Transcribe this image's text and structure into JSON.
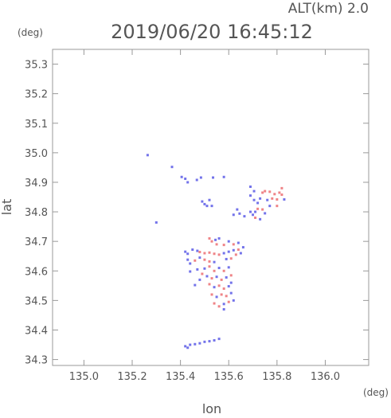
{
  "chart_data": {
    "type": "scatter",
    "title": "2019/06/20 16:45:12",
    "subtitle": "ALT(km) 2.0",
    "xlabel": "lon",
    "ylabel": "lat",
    "x_unit": "(deg)",
    "y_unit": "(deg)",
    "xlim": [
      134.87,
      136.18
    ],
    "ylim": [
      34.28,
      35.35
    ],
    "x_ticks": [
      135.0,
      135.2,
      135.4,
      135.6,
      135.8,
      136.0
    ],
    "y_ticks": [
      34.3,
      34.4,
      34.5,
      34.6,
      34.7,
      34.8,
      34.9,
      35.0,
      35.1,
      35.2,
      35.3
    ],
    "x_tick_labels": [
      "135.0",
      "135.2",
      "135.4",
      "135.6",
      "135.8",
      "136.0"
    ],
    "y_tick_labels": [
      "34.3",
      "34.4",
      "34.5",
      "34.6",
      "34.7",
      "34.8",
      "34.9",
      "35.0",
      "35.1",
      "35.2",
      "35.3"
    ],
    "grid": false,
    "colors": {
      "negative": "#5a5ae6",
      "positive": "#ec6e72",
      "neutral": "#c9c9ea",
      "axis": "#999999",
      "text": "#555555"
    },
    "series": [
      {
        "values": [
          [
            135.264,
            34.992,
            "n"
          ],
          [
            135.3,
            34.764,
            "n"
          ],
          [
            135.365,
            34.952,
            "n"
          ],
          [
            135.405,
            34.918,
            "n"
          ],
          [
            135.42,
            34.912,
            "n"
          ],
          [
            135.43,
            34.9,
            "n"
          ],
          [
            135.468,
            34.908,
            "n"
          ],
          [
            135.485,
            34.916,
            "n"
          ],
          [
            135.535,
            34.916,
            "n"
          ],
          [
            135.58,
            34.918,
            "n"
          ],
          [
            135.49,
            34.835,
            "n"
          ],
          [
            135.5,
            34.826,
            "n"
          ],
          [
            135.51,
            34.82,
            "n"
          ],
          [
            135.52,
            34.84,
            "n"
          ],
          [
            135.53,
            34.82,
            "n"
          ],
          [
            135.635,
            34.808,
            "n"
          ],
          [
            135.645,
            34.794,
            "n"
          ],
          [
            135.62,
            34.79,
            "n"
          ],
          [
            135.665,
            34.785,
            "n"
          ],
          [
            135.69,
            34.885,
            "n"
          ],
          [
            135.705,
            34.87,
            "n"
          ],
          [
            135.69,
            34.855,
            "n"
          ],
          [
            135.705,
            34.84,
            "n"
          ],
          [
            135.72,
            34.83,
            "n"
          ],
          [
            135.74,
            34.865,
            "p"
          ],
          [
            135.75,
            34.87,
            "p"
          ],
          [
            135.77,
            34.868,
            "p"
          ],
          [
            135.79,
            34.86,
            "p"
          ],
          [
            135.81,
            34.865,
            "p"
          ],
          [
            135.82,
            34.858,
            "p"
          ],
          [
            135.8,
            34.842,
            "p"
          ],
          [
            135.78,
            34.845,
            "p"
          ],
          [
            135.76,
            34.84,
            "n"
          ],
          [
            135.73,
            34.845,
            "n"
          ],
          [
            135.71,
            34.8,
            "n"
          ],
          [
            135.72,
            34.81,
            "p"
          ],
          [
            135.74,
            34.808,
            "p"
          ],
          [
            135.75,
            34.795,
            "n"
          ],
          [
            135.71,
            34.78,
            "p"
          ],
          [
            135.73,
            34.775,
            "n"
          ],
          [
            135.77,
            34.82,
            "n"
          ],
          [
            135.8,
            34.82,
            "p"
          ],
          [
            135.83,
            34.842,
            "n"
          ],
          [
            135.82,
            34.88,
            "p"
          ],
          [
            135.69,
            34.8,
            "n"
          ],
          [
            135.7,
            34.79,
            "n"
          ],
          [
            135.42,
            34.665,
            "n"
          ],
          [
            135.43,
            34.658,
            "n"
          ],
          [
            135.43,
            34.638,
            "n"
          ],
          [
            135.44,
            34.625,
            "n"
          ],
          [
            135.45,
            34.672,
            "n"
          ],
          [
            135.47,
            34.668,
            "n"
          ],
          [
            135.48,
            34.664,
            "p"
          ],
          [
            135.5,
            34.66,
            "p"
          ],
          [
            135.52,
            34.662,
            "p"
          ],
          [
            135.54,
            34.658,
            "p"
          ],
          [
            135.56,
            34.655,
            "p"
          ],
          [
            135.58,
            34.66,
            "n"
          ],
          [
            135.6,
            34.665,
            "n"
          ],
          [
            135.62,
            34.67,
            "n"
          ],
          [
            135.64,
            34.672,
            "p"
          ],
          [
            135.65,
            34.66,
            "n"
          ],
          [
            135.66,
            34.68,
            "n"
          ],
          [
            135.63,
            34.655,
            "p"
          ],
          [
            135.61,
            34.642,
            "p"
          ],
          [
            135.59,
            34.64,
            "n"
          ],
          [
            135.52,
            34.71,
            "p"
          ],
          [
            135.53,
            34.7,
            "p"
          ],
          [
            135.545,
            34.705,
            "n"
          ],
          [
            135.55,
            34.69,
            "p"
          ],
          [
            135.56,
            34.71,
            "n"
          ],
          [
            135.58,
            34.688,
            "p"
          ],
          [
            135.6,
            34.7,
            "n"
          ],
          [
            135.62,
            34.69,
            "p"
          ],
          [
            135.64,
            34.695,
            "n"
          ],
          [
            135.46,
            34.635,
            "p"
          ],
          [
            135.48,
            34.645,
            "n"
          ],
          [
            135.5,
            34.638,
            "p"
          ],
          [
            135.52,
            34.632,
            "p"
          ],
          [
            135.54,
            34.63,
            "n"
          ],
          [
            135.5,
            34.608,
            "n"
          ],
          [
            135.52,
            34.615,
            "p"
          ],
          [
            135.54,
            34.6,
            "p"
          ],
          [
            135.56,
            34.61,
            "n"
          ],
          [
            135.58,
            34.6,
            "p"
          ],
          [
            135.6,
            34.612,
            "n"
          ],
          [
            135.47,
            34.605,
            "n"
          ],
          [
            135.49,
            34.59,
            "p"
          ],
          [
            135.51,
            34.582,
            "n"
          ],
          [
            135.53,
            34.575,
            "p"
          ],
          [
            135.55,
            34.58,
            "n"
          ],
          [
            135.57,
            34.57,
            "p"
          ],
          [
            135.59,
            34.578,
            "n"
          ],
          [
            135.61,
            34.585,
            "p"
          ],
          [
            135.52,
            34.555,
            "p"
          ],
          [
            135.54,
            34.545,
            "n"
          ],
          [
            135.56,
            34.55,
            "p"
          ],
          [
            135.58,
            34.54,
            "p"
          ],
          [
            135.6,
            34.548,
            "n"
          ],
          [
            135.61,
            34.56,
            "n"
          ],
          [
            135.53,
            34.52,
            "p"
          ],
          [
            135.55,
            34.512,
            "n"
          ],
          [
            135.57,
            34.52,
            "p"
          ],
          [
            135.59,
            34.515,
            "p"
          ],
          [
            135.61,
            34.525,
            "n"
          ],
          [
            135.54,
            34.49,
            "p"
          ],
          [
            135.56,
            34.48,
            "p"
          ],
          [
            135.58,
            34.488,
            "n"
          ],
          [
            135.6,
            34.495,
            "p"
          ],
          [
            135.58,
            34.47,
            "n"
          ],
          [
            135.62,
            34.5,
            "n"
          ],
          [
            135.46,
            34.552,
            "n"
          ],
          [
            135.48,
            34.57,
            "n"
          ],
          [
            135.44,
            34.598,
            "n"
          ],
          [
            135.42,
            34.345,
            "n"
          ],
          [
            135.44,
            34.35,
            "n"
          ],
          [
            135.46,
            34.352,
            "n"
          ],
          [
            135.48,
            34.355,
            "n"
          ],
          [
            135.5,
            34.36,
            "n"
          ],
          [
            135.52,
            34.362,
            "n"
          ],
          [
            135.54,
            34.365,
            "n"
          ],
          [
            135.56,
            34.37,
            "n"
          ],
          [
            135.43,
            34.34,
            "n"
          ]
        ]
      }
    ]
  }
}
